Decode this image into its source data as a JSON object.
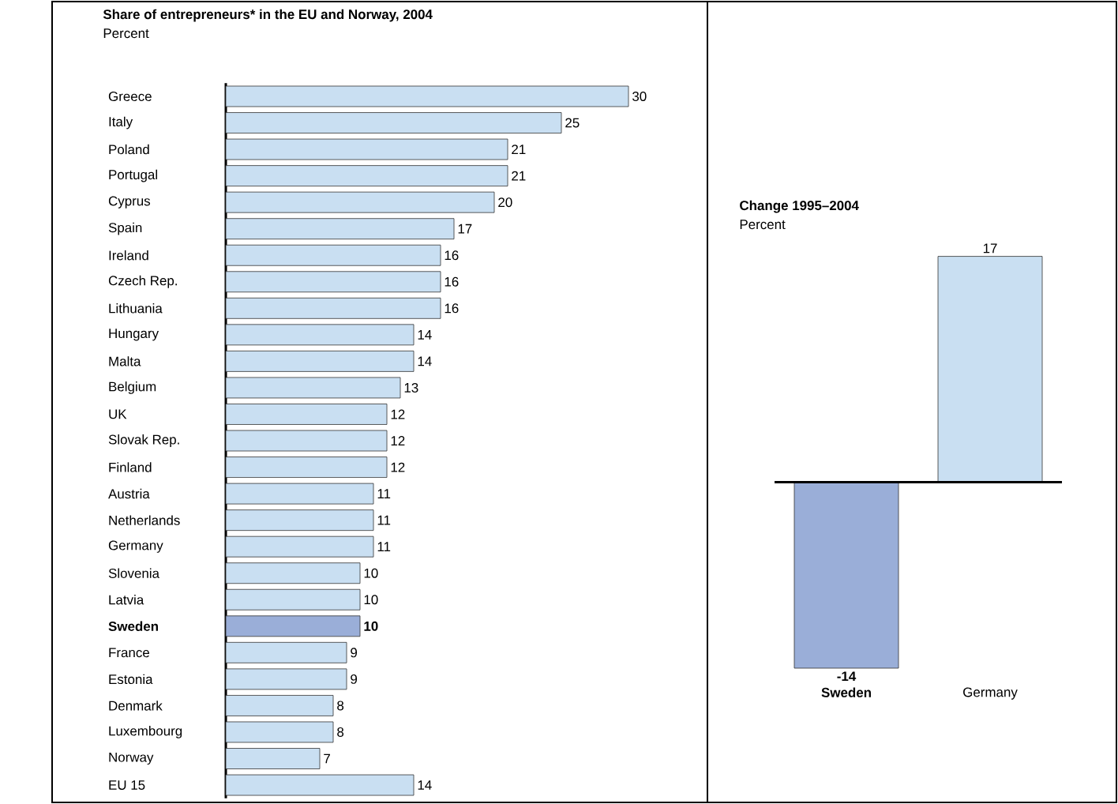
{
  "chart_data": [
    {
      "type": "bar",
      "orientation": "horizontal",
      "title": "Share of entrepreneurs* in the EU and Norway, 2004",
      "subtitle": "Percent",
      "categories": [
        "Greece",
        "Italy",
        "Poland",
        "Portugal",
        "Cyprus",
        "Spain",
        "Ireland",
        "Czech Rep.",
        "Lithuania",
        "Hungary",
        "Malta",
        "Belgium",
        "UK",
        "Slovak Rep.",
        "Finland",
        "Austria",
        "Netherlands",
        "Germany",
        "Slovenia",
        "Latvia",
        "Sweden",
        "France",
        "Estonia",
        "Denmark",
        "Luxembourg",
        "Norway",
        "EU 15"
      ],
      "values": [
        30,
        25,
        21,
        21,
        20,
        17,
        16,
        16,
        16,
        14,
        14,
        13,
        12,
        12,
        12,
        11,
        11,
        11,
        10,
        10,
        10,
        9,
        9,
        8,
        8,
        7,
        14
      ],
      "colors": [
        "#c9dff2",
        "#c9dff2",
        "#c9dff2",
        "#c9dff2",
        "#c9dff2",
        "#c9dff2",
        "#c9dff2",
        "#c9dff2",
        "#c9dff2",
        "#c9dff2",
        "#c9dff2",
        "#c9dff2",
        "#c9dff2",
        "#c9dff2",
        "#c9dff2",
        "#c9dff2",
        "#c9dff2",
        "#c9dff2",
        "#c9dff2",
        "#c9dff2",
        "#9aaed8",
        "#c9dff2",
        "#c9dff2",
        "#c9dff2",
        "#c9dff2",
        "#c9dff2",
        "#c9dff2"
      ],
      "data_labels": true
    },
    {
      "type": "bar",
      "title": "Change 1995–2004",
      "subtitle": "Percent",
      "categories": [
        "Sweden",
        "Germany"
      ],
      "values": [
        -14,
        17
      ],
      "colors": [
        "#9aaed8",
        "#c9dff2"
      ],
      "data_labels": true
    }
  ]
}
